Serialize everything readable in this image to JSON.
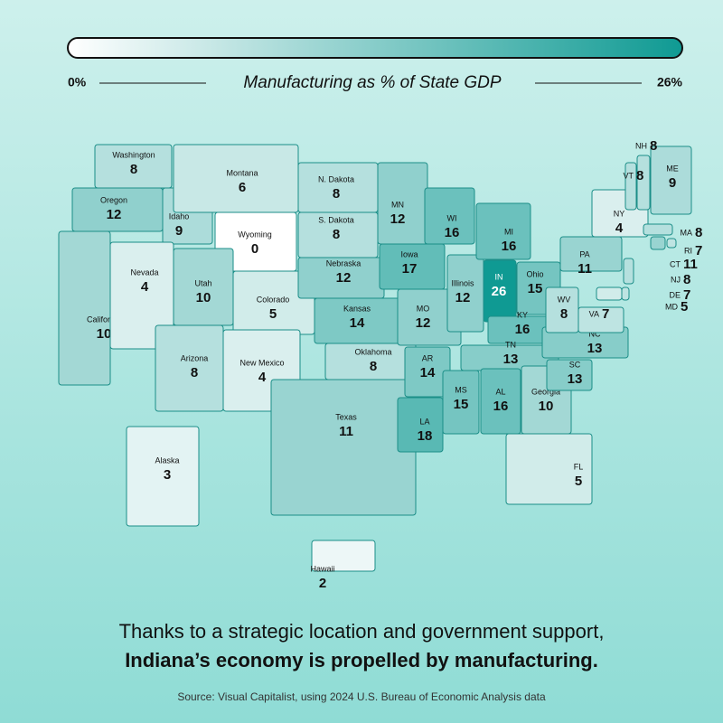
{
  "legend": {
    "title": "Manufacturing as % of State GDP",
    "min": {
      "value": 0,
      "label": "0%"
    },
    "max": {
      "value": 26,
      "label": "26%"
    }
  },
  "states": [
    {
      "name": "Washington",
      "value": 8
    },
    {
      "name": "Oregon",
      "value": 12
    },
    {
      "name": "California",
      "value": 10
    },
    {
      "name": "Idaho",
      "value": 9
    },
    {
      "name": "Montana",
      "value": 6
    },
    {
      "name": "Wyoming",
      "value": 0
    },
    {
      "name": "Nevada",
      "value": 4
    },
    {
      "name": "Utah",
      "value": 10
    },
    {
      "name": "Colorado",
      "value": 5
    },
    {
      "name": "Arizona",
      "value": 8
    },
    {
      "name": "New Mexico",
      "value": 4
    },
    {
      "name": "N. Dakota",
      "value": 8
    },
    {
      "name": "S. Dakota",
      "value": 8
    },
    {
      "name": "Nebraska",
      "value": 12
    },
    {
      "name": "Kansas",
      "value": 14
    },
    {
      "name": "Oklahoma",
      "value": 8
    },
    {
      "name": "Texas",
      "value": 11
    },
    {
      "name": "MN",
      "value": 12
    },
    {
      "name": "Iowa",
      "value": 17
    },
    {
      "name": "MO",
      "value": 12
    },
    {
      "name": "AR",
      "value": 14
    },
    {
      "name": "LA",
      "value": 18
    },
    {
      "name": "WI",
      "value": 16
    },
    {
      "name": "Illinois",
      "value": 12
    },
    {
      "name": "MI",
      "value": 16
    },
    {
      "name": "IN",
      "value": 26
    },
    {
      "name": "Ohio",
      "value": 15
    },
    {
      "name": "KY",
      "value": 16
    },
    {
      "name": "TN",
      "value": 13
    },
    {
      "name": "MS",
      "value": 15
    },
    {
      "name": "AL",
      "value": 16
    },
    {
      "name": "Georgia",
      "value": 10
    },
    {
      "name": "SC",
      "value": 13
    },
    {
      "name": "NC",
      "value": 13
    },
    {
      "name": "FL",
      "value": 5
    },
    {
      "name": "WV",
      "value": 8
    },
    {
      "name": "VA",
      "value": 7
    },
    {
      "name": "PA",
      "value": 11
    },
    {
      "name": "NY",
      "value": 4
    },
    {
      "name": "ME",
      "value": 9
    },
    {
      "name": "NH",
      "value": 8
    },
    {
      "name": "VT",
      "value": 8
    },
    {
      "name": "MA",
      "value": 8
    },
    {
      "name": "RI",
      "value": 7
    },
    {
      "name": "CT",
      "value": 11
    },
    {
      "name": "NJ",
      "value": 8
    },
    {
      "name": "DE",
      "value": 7
    },
    {
      "name": "MD",
      "value": 5
    },
    {
      "name": "Alaska",
      "value": 3
    },
    {
      "name": "Hawaii",
      "value": 2
    }
  ],
  "headline": {
    "line1": "Thanks to a strategic location and government support,",
    "line2": "Indiana’s economy is propelled by manufacturing."
  },
  "source": "Source: Visual Capitalist, using 2024 U.S. Bureau of Economic Analysis data"
}
